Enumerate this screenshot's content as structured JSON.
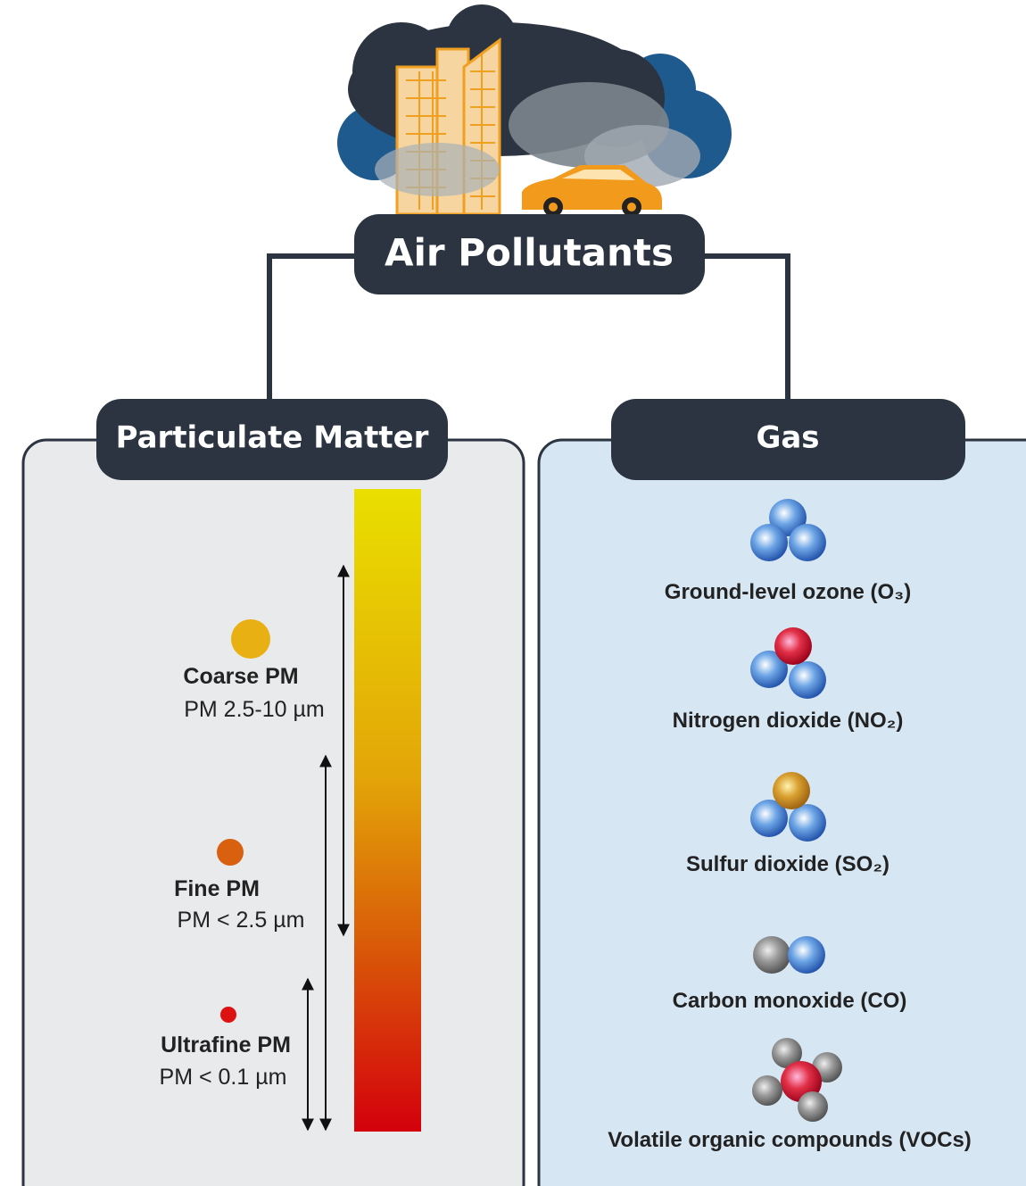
{
  "title": "Air Pollutants",
  "particulate_matter": {
    "heading": "Particulate Matter",
    "items": [
      {
        "name": "Coarse PM",
        "size": "PM 2.5-10 µm"
      },
      {
        "name": "Fine PM",
        "size": "PM < 2.5 µm"
      },
      {
        "name": "Ultrafine PM",
        "size": "PM < 0.1 µm"
      }
    ]
  },
  "gas": {
    "heading": "Gas",
    "items": [
      {
        "label": "Ground-level ozone (O₃)"
      },
      {
        "label": "Nitrogen dioxide (NO₂)"
      },
      {
        "label": "Sulfur dioxide (SO₂)"
      },
      {
        "label": "Carbon monoxide (CO)"
      },
      {
        "label": "Volatile organic compounds (VOCs)"
      }
    ]
  }
}
